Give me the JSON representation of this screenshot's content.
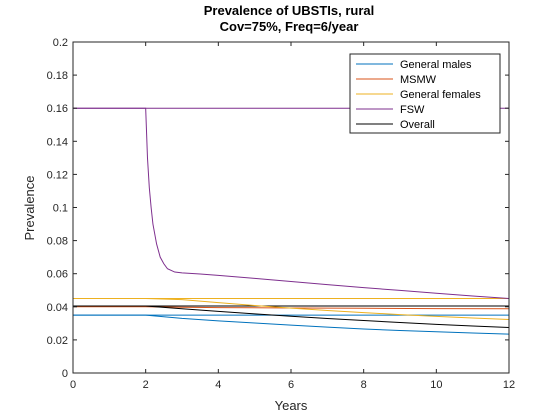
{
  "chart_data": {
    "type": "line",
    "title": "Prevalence of UBSTIs, rural",
    "subtitle": "Cov=75%, Freq=6/year",
    "xlabel": "Years",
    "ylabel": "Prevalence",
    "xlim": [
      0,
      12
    ],
    "ylim": [
      0,
      0.2
    ],
    "xticks": [
      0,
      2,
      4,
      6,
      8,
      10,
      12
    ],
    "xtick_labels": [
      "0",
      "2",
      "4",
      "6",
      "8",
      "10",
      "12"
    ],
    "yticks": [
      0,
      0.02,
      0.04,
      0.06,
      0.08,
      0.1,
      0.12,
      0.14,
      0.16,
      0.18,
      0.2
    ],
    "ytick_labels": [
      "0",
      "0.02",
      "0.04",
      "0.06",
      "0.08",
      "0.1",
      "0.12",
      "0.14",
      "0.16",
      "0.18",
      "0.2"
    ],
    "grid": false,
    "legend_position": "top-right",
    "series": [
      {
        "name": "General males",
        "color": "#0072BD",
        "x": [
          0,
          2,
          2.5,
          3,
          4,
          5,
          6,
          7,
          8,
          9,
          10,
          11,
          12
        ],
        "y": [
          0.035,
          0.035,
          0.034,
          0.033,
          0.0315,
          0.0302,
          0.0289,
          0.0277,
          0.0266,
          0.0257,
          0.0249,
          0.0242,
          0.0235
        ]
      },
      {
        "name": "MSMW",
        "color": "#D95319",
        "x": [
          0,
          2,
          3,
          4,
          6,
          8,
          10,
          12
        ],
        "y": [
          0.04,
          0.04,
          0.0397,
          0.0395,
          0.0393,
          0.0391,
          0.0389,
          0.0388
        ]
      },
      {
        "name": "General females",
        "color": "#EDB120",
        "x": [
          0,
          2,
          3,
          4,
          5,
          6,
          7,
          8,
          9,
          10,
          11,
          12
        ],
        "y": [
          0.045,
          0.045,
          0.0443,
          0.0425,
          0.0408,
          0.0392,
          0.0378,
          0.0365,
          0.0353,
          0.0342,
          0.0332,
          0.0323
        ]
      },
      {
        "name": "FSW",
        "color": "#7E2F8E",
        "x": [
          0,
          2,
          2.05,
          2.1,
          2.15,
          2.2,
          2.3,
          2.4,
          2.5,
          2.6,
          2.8,
          3,
          3.5,
          4,
          5,
          6,
          7,
          8,
          9,
          10,
          11,
          12
        ],
        "y": [
          0.16,
          0.16,
          0.13,
          0.112,
          0.1,
          0.09,
          0.078,
          0.07,
          0.066,
          0.063,
          0.061,
          0.0605,
          0.0598,
          0.059,
          0.0572,
          0.0553,
          0.0534,
          0.0516,
          0.0499,
          0.0482,
          0.0465,
          0.045
        ]
      },
      {
        "name": "Overall",
        "color": "#000000",
        "x": [
          0,
          2,
          3,
          4,
          5,
          6,
          7,
          8,
          9,
          10,
          11,
          12
        ],
        "y": [
          0.0405,
          0.0405,
          0.0388,
          0.0372,
          0.0357,
          0.0343,
          0.0329,
          0.0317,
          0.0305,
          0.0294,
          0.0284,
          0.0275
        ]
      }
    ],
    "reference_lines": [
      {
        "color": "#0072BD",
        "y": 0.035,
        "x": [
          0,
          12
        ]
      },
      {
        "color": "#D95319",
        "y": 0.0405,
        "x": [
          0,
          12
        ]
      },
      {
        "color": "#EDB120",
        "y": 0.045,
        "x": [
          0,
          12
        ]
      },
      {
        "color": "#7E2F8E",
        "y": 0.16,
        "x": [
          0,
          12
        ]
      },
      {
        "color": "#000000",
        "y": 0.0405,
        "x": [
          0,
          12
        ]
      }
    ]
  }
}
